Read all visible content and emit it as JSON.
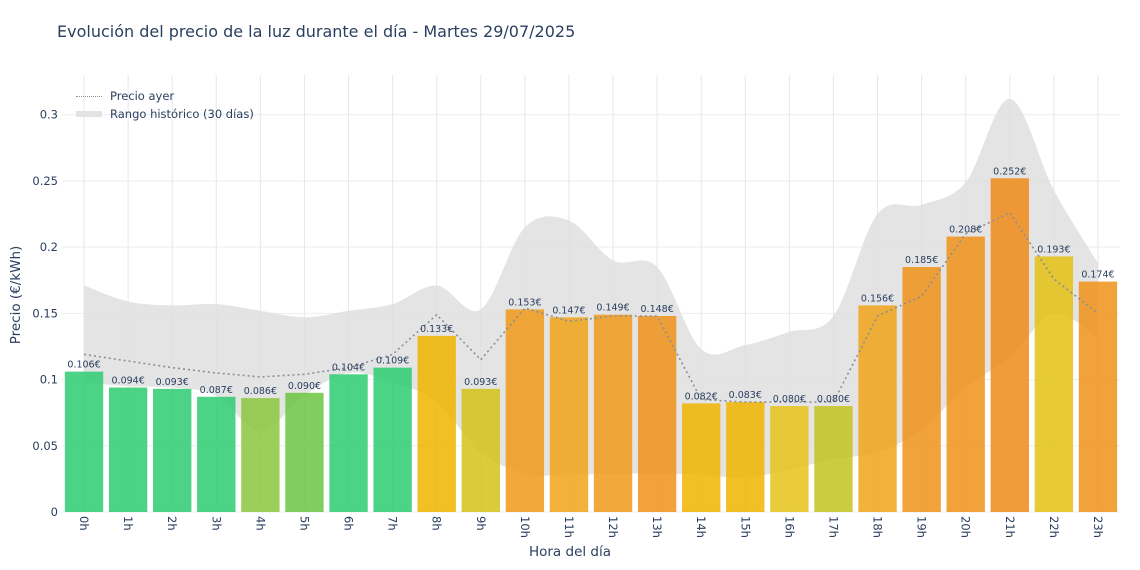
{
  "page": {
    "title": "Evolución del precio de la luz durante el día - Martes 29/07/2025"
  },
  "chart_data": {
    "type": "bar",
    "title": "Evolución del precio de la luz durante el día - Martes 29/07/2025",
    "xlabel": "Hora del día",
    "ylabel": "Precio (€/kWh)",
    "ylim": [
      0,
      0.33
    ],
    "yticks": [
      0,
      0.05,
      0.1,
      0.15,
      0.2,
      0.25,
      0.3
    ],
    "ytick_labels": [
      "0",
      "0.05",
      "0.1",
      "0.15",
      "0.2",
      "0.25",
      "0.3"
    ],
    "categories": [
      "0h",
      "1h",
      "2h",
      "3h",
      "4h",
      "5h",
      "6h",
      "7h",
      "8h",
      "9h",
      "10h",
      "11h",
      "12h",
      "13h",
      "14h",
      "15h",
      "16h",
      "17h",
      "18h",
      "19h",
      "20h",
      "21h",
      "22h",
      "23h"
    ],
    "values": [
      0.106,
      0.094,
      0.093,
      0.087,
      0.086,
      0.09,
      0.104,
      0.109,
      0.133,
      0.093,
      0.153,
      0.147,
      0.149,
      0.148,
      0.082,
      0.083,
      0.08,
      0.08,
      0.156,
      0.185,
      0.208,
      0.252,
      0.193,
      0.174
    ],
    "value_labels": [
      "0.106€",
      "0.094€",
      "0.093€",
      "0.087€",
      "0.086€",
      "0.090€",
      "0.104€",
      "0.109€",
      "0.133€",
      "0.093€",
      "0.153€",
      "0.147€",
      "0.149€",
      "0.148€",
      "0.082€",
      "0.083€",
      "0.080€",
      "0.080€",
      "0.156€",
      "0.185€",
      "0.208€",
      "0.252€",
      "0.193€",
      "0.174€"
    ],
    "bar_colors": [
      "#2ecc71",
      "#2ecc71",
      "#2ecc71",
      "#2ecc71",
      "#8cc63f",
      "#6cc644",
      "#2ecc71",
      "#2ecc71",
      "#f0b400",
      "#d4c21a",
      "#f09a1a",
      "#f0a41a",
      "#f09a1a",
      "#f0931a",
      "#f0b400",
      "#f0b400",
      "#e6c41a",
      "#c2c41f",
      "#f0a41a",
      "#f0931a",
      "#f0931a",
      "#f08a1a",
      "#e3c114",
      "#f0931a"
    ],
    "series": [
      {
        "name": "Precio ayer",
        "style": "dotted-line",
        "color": "#8a8f98",
        "values": [
          0.119,
          0.114,
          0.109,
          0.105,
          0.102,
          0.104,
          0.109,
          0.119,
          0.149,
          0.115,
          0.154,
          0.144,
          0.148,
          0.148,
          0.085,
          0.083,
          0.083,
          0.083,
          0.148,
          0.163,
          0.21,
          0.226,
          0.176,
          0.15
        ]
      },
      {
        "name": "Rango histórico (30 días)",
        "style": "band",
        "color": "#dedede",
        "upper": [
          0.171,
          0.159,
          0.156,
          0.157,
          0.152,
          0.147,
          0.152,
          0.157,
          0.171,
          0.153,
          0.215,
          0.22,
          0.19,
          0.185,
          0.123,
          0.126,
          0.136,
          0.148,
          0.225,
          0.232,
          0.249,
          0.312,
          0.243,
          0.188
        ],
        "lower": [
          0.098,
          0.095,
          0.094,
          0.088,
          0.061,
          0.088,
          0.105,
          0.098,
          0.083,
          0.045,
          0.029,
          0.028,
          0.029,
          0.029,
          0.028,
          0.026,
          0.032,
          0.04,
          0.045,
          0.062,
          0.094,
          0.117,
          0.15,
          0.131
        ]
      }
    ],
    "grid": true,
    "legend": "top-left"
  }
}
